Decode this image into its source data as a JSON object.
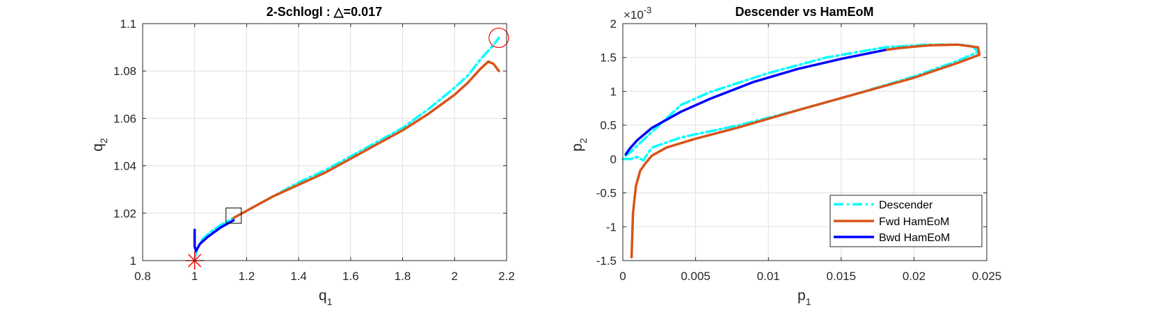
{
  "chart_data": [
    {
      "type": "line",
      "title": "2-Schlogl : △=0.017",
      "xlabel": "q",
      "xlabel_sub": "1",
      "ylabel": "q",
      "ylabel_sub": "2",
      "xlim": [
        0.8,
        2.2
      ],
      "ylim": [
        1.0,
        1.1
      ],
      "xticks": [
        0.8,
        1,
        1.2,
        1.4,
        1.6,
        1.8,
        2,
        2.2
      ],
      "xtick_labels": [
        "0.8",
        "1",
        "1.2",
        "1.4",
        "1.6",
        "1.8",
        "2",
        "2.2"
      ],
      "yticks": [
        1.0,
        1.02,
        1.04,
        1.06,
        1.08,
        1.1
      ],
      "ytick_labels": [
        "1",
        "1.02",
        "1.04",
        "1.06",
        "1.08",
        "1.1"
      ],
      "grid": true,
      "series": [
        {
          "style": "dashdot",
          "color": "#00ffff",
          "x": [
            1.0,
            1.01,
            1.03,
            1.06,
            1.1,
            1.15,
            1.2,
            1.3,
            1.4,
            1.5,
            1.6,
            1.7,
            1.8,
            1.9,
            2.0,
            2.05,
            2.1,
            2.15,
            2.17
          ],
          "y": [
            1.001,
            1.005,
            1.009,
            1.012,
            1.015,
            1.018,
            1.021,
            1.027,
            1.033,
            1.038,
            1.044,
            1.05,
            1.056,
            1.064,
            1.073,
            1.078,
            1.085,
            1.091,
            1.094
          ]
        },
        {
          "style": "solid",
          "color": "#d95319",
          "x": [
            1.15,
            1.2,
            1.3,
            1.4,
            1.5,
            1.6,
            1.7,
            1.8,
            1.9,
            2.0,
            2.05,
            2.1,
            2.13,
            2.15,
            2.17
          ],
          "y": [
            1.018,
            1.021,
            1.027,
            1.032,
            1.037,
            1.043,
            1.049,
            1.055,
            1.062,
            1.07,
            1.075,
            1.081,
            1.084,
            1.083,
            1.08
          ]
        },
        {
          "style": "solid",
          "color": "#0000ff",
          "x": [
            1.0,
            1.0,
            1.005,
            1.02,
            1.05,
            1.1,
            1.15
          ],
          "y": [
            1.013,
            1.006,
            1.004,
            1.007,
            1.01,
            1.014,
            1.017
          ]
        }
      ],
      "markers": [
        {
          "type": "asterisk",
          "color": "#ff0000",
          "x": 1.0,
          "y": 1.0
        },
        {
          "type": "circle",
          "color": "#ff0000",
          "x": 2.17,
          "y": 1.094
        },
        {
          "type": "square",
          "color": "#000000",
          "x": 1.15,
          "y": 1.019
        }
      ]
    },
    {
      "type": "line",
      "title": "Descender vs HamEoM",
      "xlabel": "p",
      "xlabel_sub": "1",
      "ylabel": "p",
      "ylabel_sub": "2",
      "y_exponent_base": "×10",
      "y_exponent": "-3",
      "xlim": [
        0,
        0.025
      ],
      "ylim": [
        -1.5,
        2
      ],
      "xticks": [
        0,
        0.005,
        0.01,
        0.015,
        0.02,
        0.025
      ],
      "xtick_labels": [
        "0",
        "0.005",
        "0.01",
        "0.015",
        "0.02",
        "0.025"
      ],
      "yticks": [
        -1.5,
        -1,
        -0.5,
        0,
        0.5,
        1,
        1.5,
        2
      ],
      "ytick_labels": [
        "-1.5",
        "-1",
        "-0.5",
        "0",
        "0.5",
        "1",
        "1.5",
        "2"
      ],
      "grid": true,
      "legend_position": "bottom-right",
      "series": [
        {
          "name": "Descender",
          "style": "dashdot",
          "color": "#00ffff",
          "x": [
            0.0,
            0.0005,
            0.001,
            0.0014,
            0.002,
            0.004,
            0.008,
            0.012,
            0.016,
            0.02,
            0.023,
            0.0244,
            0.024,
            0.023,
            0.021,
            0.018,
            0.014,
            0.01,
            0.006,
            0.004,
            0.003,
            0.002,
            0.001,
            0.0005,
            0.0002
          ],
          "y": [
            0.0,
            0.0,
            0.03,
            -0.02,
            0.17,
            0.32,
            0.5,
            0.72,
            0.96,
            1.22,
            1.45,
            1.58,
            1.67,
            1.69,
            1.69,
            1.65,
            1.5,
            1.27,
            0.99,
            0.8,
            0.6,
            0.4,
            0.2,
            0.1,
            0.05
          ]
        },
        {
          "name": "Fwd HamEoM",
          "style": "solid",
          "color": "#d95319",
          "x": [
            0.0006,
            0.0007,
            0.0009,
            0.0012,
            0.0016,
            0.002,
            0.003,
            0.005,
            0.008,
            0.012,
            0.016,
            0.02,
            0.023,
            0.0245,
            0.0244,
            0.023,
            0.021,
            0.019,
            0.018
          ],
          "y": [
            -1.45,
            -0.8,
            -0.4,
            -0.17,
            -0.05,
            0.05,
            0.17,
            0.3,
            0.47,
            0.72,
            0.96,
            1.2,
            1.42,
            1.54,
            1.65,
            1.69,
            1.68,
            1.64,
            1.61
          ]
        },
        {
          "name": "Bwd HamEoM",
          "style": "solid",
          "color": "#0000ff",
          "x": [
            0.018,
            0.015,
            0.012,
            0.009,
            0.006,
            0.004,
            0.002,
            0.001,
            0.0005,
            0.0002
          ],
          "y": [
            1.61,
            1.48,
            1.33,
            1.14,
            0.89,
            0.7,
            0.46,
            0.28,
            0.16,
            0.07
          ]
        }
      ]
    }
  ]
}
